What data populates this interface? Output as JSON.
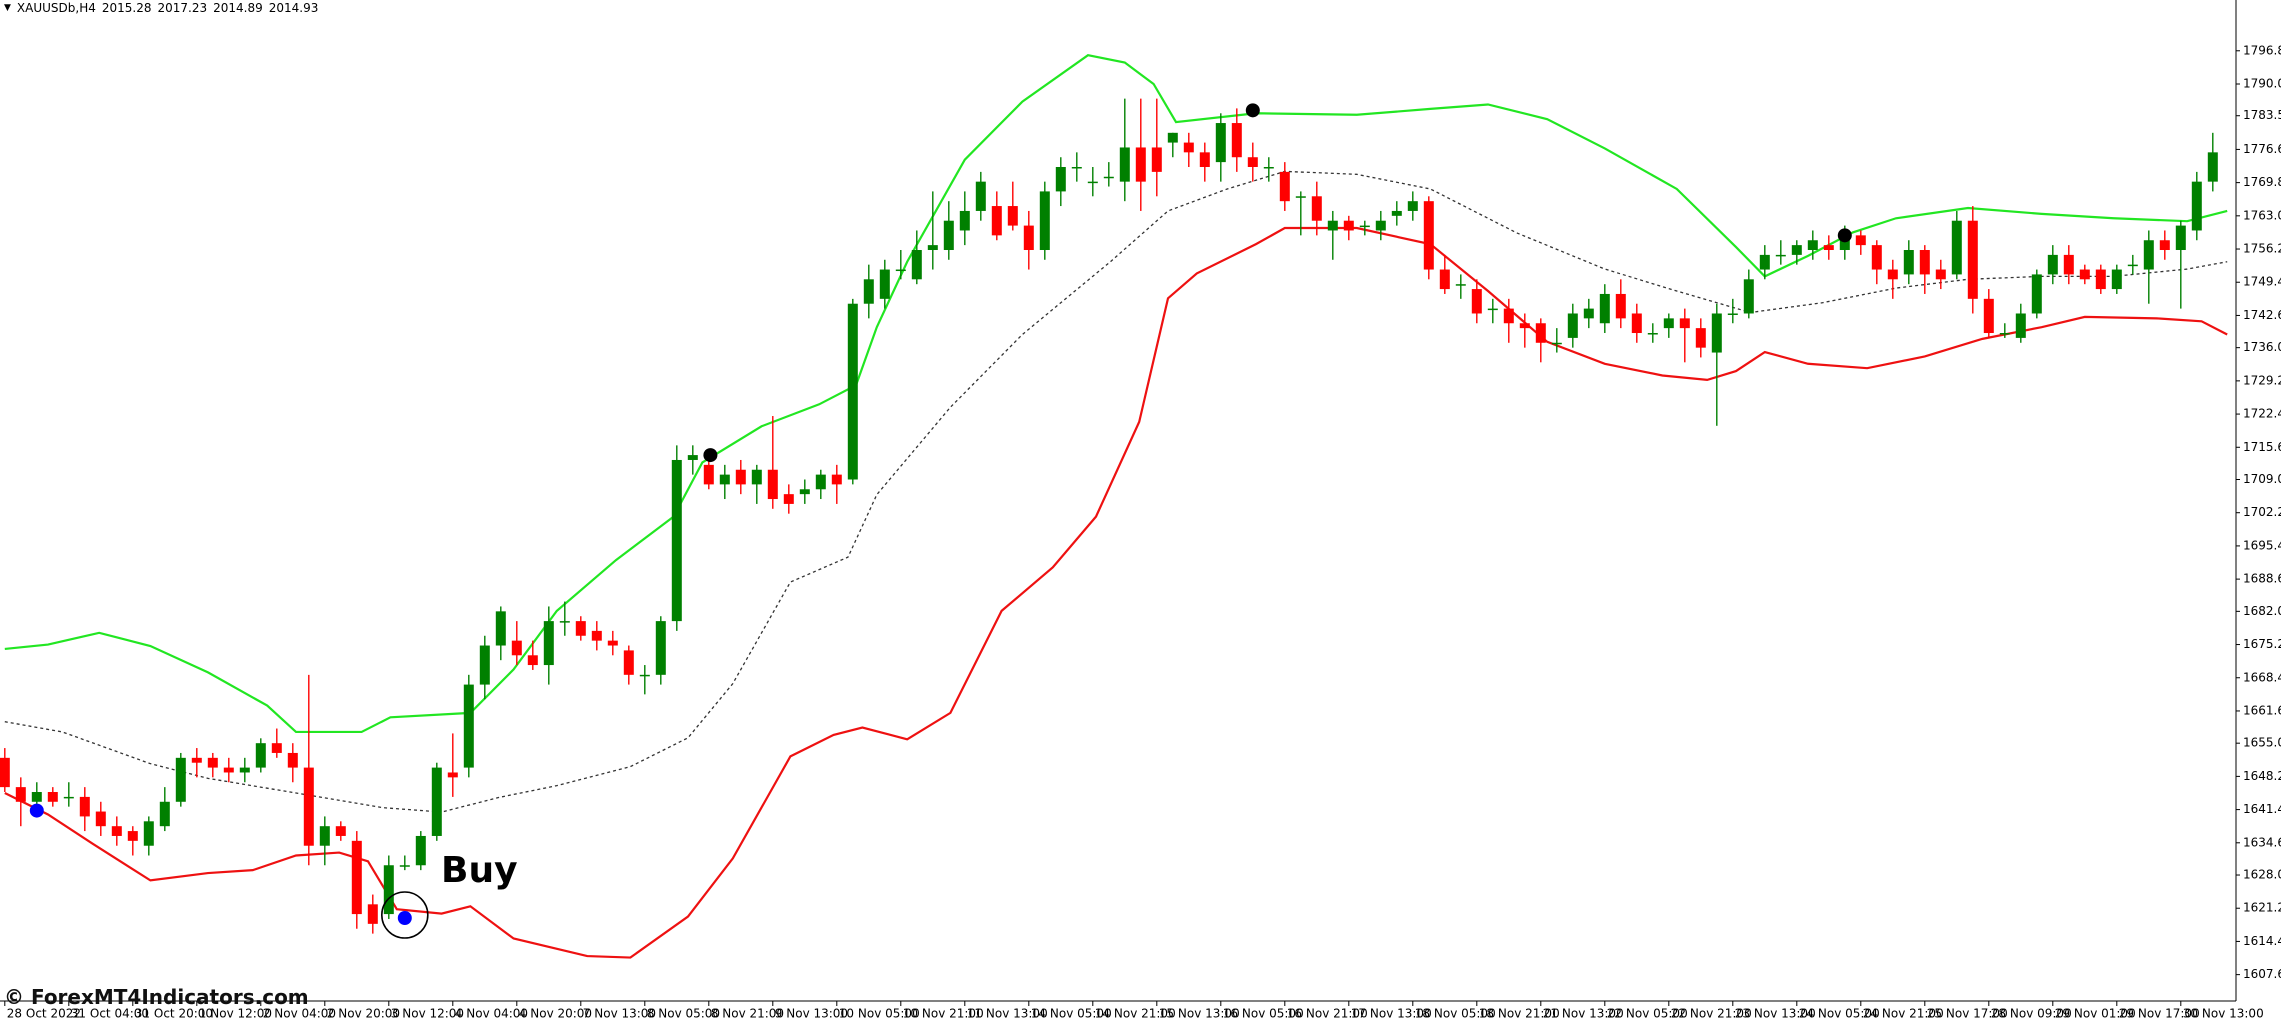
{
  "header": {
    "symbol": "XAUUSDb,H4",
    "quote": [
      2015.28,
      2017.23,
      2014.89,
      2014.93
    ]
  },
  "watermark": "© ForexMT4Indicators.com",
  "chart_data": {
    "type": "candlestick",
    "annotation": "Buy",
    "up_color": "#008000",
    "down_color": "#ff0000",
    "ylim": [
      1602.2,
      1807.2
    ],
    "yticks": [
      {
        "value": 1796.8,
        "label": "1796.80"
      },
      {
        "value": 1790,
        "label": "1790.00"
      },
      {
        "value": 1783.5,
        "label": "1783.50"
      },
      {
        "value": 1776.6,
        "label": "1776.60"
      },
      {
        "value": 1769.8,
        "label": "1769.80"
      },
      {
        "value": 1763,
        "label": "1763.00"
      },
      {
        "value": 1756.2,
        "label": "1756.20"
      },
      {
        "value": 1749.4,
        "label": "1749.40"
      },
      {
        "value": 1742.6,
        "label": "1742.60"
      },
      {
        "value": 1736,
        "label": "1736.00"
      },
      {
        "value": 1729.2,
        "label": "1729.20"
      },
      {
        "value": 1722.4,
        "label": "1722.40"
      },
      {
        "value": 1715.6,
        "label": "1715.60"
      },
      {
        "value": 1709,
        "label": "1709.00"
      },
      {
        "value": 1702.2,
        "label": "1702.20"
      },
      {
        "value": 1695.4,
        "label": "1695.40"
      },
      {
        "value": 1688.6,
        "label": "1688.60"
      },
      {
        "value": 1682,
        "label": "1682.00"
      },
      {
        "value": 1675.2,
        "label": "1675.20"
      },
      {
        "value": 1668.4,
        "label": "1668.40"
      },
      {
        "value": 1661.6,
        "label": "1661.60"
      },
      {
        "value": 1655,
        "label": "1655.00"
      },
      {
        "value": 1648.2,
        "label": "1648.20"
      },
      {
        "value": 1641.4,
        "label": "1641.40"
      },
      {
        "value": 1634.6,
        "label": "1634.60"
      },
      {
        "value": 1628,
        "label": "1628.00"
      },
      {
        "value": 1621.2,
        "label": "1621.20"
      },
      {
        "value": 1614.4,
        "label": "1614.40"
      },
      {
        "value": 1607.6,
        "label": "1607.60"
      }
    ],
    "xlim": [
      -0.3,
      139.45
    ],
    "xticks": [
      {
        "value": 0,
        "label": "28 Oct 2022"
      },
      {
        "value": 4,
        "label": "31 Oct 04:00"
      },
      {
        "value": 8,
        "label": "31 Oct 20:00"
      },
      {
        "value": 12,
        "label": "1 Nov 12:00"
      },
      {
        "value": 16,
        "label": "2 Nov 04:00"
      },
      {
        "value": 20,
        "label": "2 Nov 20:00"
      },
      {
        "value": 24,
        "label": "3 Nov 12:00"
      },
      {
        "value": 28,
        "label": "4 Nov 04:00"
      },
      {
        "value": 32,
        "label": "4 Nov 20:00"
      },
      {
        "value": 36,
        "label": "7 Nov 13:00"
      },
      {
        "value": 40,
        "label": "8 Nov 05:00"
      },
      {
        "value": 44,
        "label": "8 Nov 21:00"
      },
      {
        "value": 48,
        "label": "9 Nov 13:00"
      },
      {
        "value": 52,
        "label": "10 Nov 05:00"
      },
      {
        "value": 56,
        "label": "10 Nov 21:00"
      },
      {
        "value": 60,
        "label": "11 Nov 13:00"
      },
      {
        "value": 64,
        "label": "14 Nov 05:00"
      },
      {
        "value": 68,
        "label": "14 Nov 21:00"
      },
      {
        "value": 72,
        "label": "15 Nov 13:00"
      },
      {
        "value": 76,
        "label": "16 Nov 05:00"
      },
      {
        "value": 80,
        "label": "16 Nov 21:00"
      },
      {
        "value": 84,
        "label": "17 Nov 13:00"
      },
      {
        "value": 88,
        "label": "18 Nov 05:00"
      },
      {
        "value": 92,
        "label": "18 Nov 21:00"
      },
      {
        "value": 96,
        "label": "21 Nov 13:00"
      },
      {
        "value": 100,
        "label": "22 Nov 05:00"
      },
      {
        "value": 104,
        "label": "22 Nov 21:00"
      },
      {
        "value": 108,
        "label": "23 Nov 13:00"
      },
      {
        "value": 112,
        "label": "24 Nov 05:00"
      },
      {
        "value": 116,
        "label": "24 Nov 21:00"
      },
      {
        "value": 120,
        "label": "25 Nov 17:00"
      },
      {
        "value": 124,
        "label": "28 Nov 09:00"
      },
      {
        "value": 128,
        "label": "29 Nov 01:00"
      },
      {
        "value": 132,
        "label": "29 Nov 17:00"
      },
      {
        "value": 136,
        "label": "30 Nov 13:00"
      }
    ],
    "ohlc": [
      [
        1652,
        1654,
        1645,
        1646
      ],
      [
        1646,
        1648,
        1638,
        1643
      ],
      [
        1643,
        1647,
        1641,
        1645
      ],
      [
        1645,
        1646,
        1642,
        1643
      ],
      [
        1644,
        1647,
        1642,
        1644
      ],
      [
        1644,
        1646,
        1637,
        1640
      ],
      [
        1641,
        1643,
        1636,
        1638
      ],
      [
        1638,
        1640,
        1634,
        1636
      ],
      [
        1637,
        1638,
        1632,
        1635
      ],
      [
        1634,
        1640,
        1632,
        1639
      ],
      [
        1638,
        1646,
        1637,
        1643
      ],
      [
        1643,
        1653,
        1642,
        1652
      ],
      [
        1652,
        1654,
        1648,
        1651
      ],
      [
        1652,
        1653,
        1648,
        1650
      ],
      [
        1650,
        1652,
        1647,
        1649
      ],
      [
        1649,
        1652,
        1647,
        1650
      ],
      [
        1650,
        1656,
        1649,
        1655
      ],
      [
        1655,
        1658,
        1652,
        1653
      ],
      [
        1653,
        1655,
        1647,
        1650
      ],
      [
        1650,
        1669,
        1630,
        1634
      ],
      [
        1634,
        1640,
        1630,
        1638
      ],
      [
        1638,
        1639,
        1635,
        1636
      ],
      [
        1635,
        1637,
        1617,
        1620
      ],
      [
        1622,
        1624,
        1616,
        1618
      ],
      [
        1620,
        1632,
        1619,
        1630
      ],
      [
        1630,
        1632,
        1629,
        1630
      ],
      [
        1630,
        1637,
        1629,
        1636
      ],
      [
        1636,
        1651,
        1635,
        1650
      ],
      [
        1649,
        1657,
        1644,
        1648
      ],
      [
        1650,
        1669,
        1648,
        1667
      ],
      [
        1667,
        1677,
        1664,
        1675
      ],
      [
        1675,
        1683,
        1672,
        1682
      ],
      [
        1676,
        1680,
        1671,
        1673
      ],
      [
        1673,
        1676,
        1670,
        1671
      ],
      [
        1671,
        1683,
        1667,
        1680
      ],
      [
        1680,
        1684,
        1677,
        1680
      ],
      [
        1680,
        1681,
        1676,
        1677
      ],
      [
        1678,
        1680,
        1674,
        1676
      ],
      [
        1676,
        1678,
        1673,
        1675
      ],
      [
        1674,
        1675,
        1667,
        1669
      ],
      [
        1669,
        1671,
        1665,
        1669
      ],
      [
        1669,
        1681,
        1667,
        1680
      ],
      [
        1680,
        1716,
        1678,
        1713
      ],
      [
        1713,
        1716,
        1710,
        1714
      ],
      [
        1712,
        1714,
        1707,
        1708
      ],
      [
        1708,
        1712,
        1705,
        1710
      ],
      [
        1711,
        1713,
        1706,
        1708
      ],
      [
        1708,
        1712,
        1704,
        1711
      ],
      [
        1711,
        1722,
        1703,
        1705
      ],
      [
        1706,
        1708,
        1702,
        1704
      ],
      [
        1706,
        1709,
        1704,
        1707
      ],
      [
        1707,
        1711,
        1705,
        1710
      ],
      [
        1710,
        1712,
        1704,
        1708
      ],
      [
        1709,
        1746,
        1708,
        1745
      ],
      [
        1745,
        1753,
        1742,
        1750
      ],
      [
        1746,
        1754,
        1744,
        1752
      ],
      [
        1752,
        1756,
        1750,
        1752
      ],
      [
        1750,
        1760,
        1749,
        1756
      ],
      [
        1756,
        1768,
        1752,
        1757
      ],
      [
        1756,
        1766,
        1754,
        1762
      ],
      [
        1760,
        1768,
        1757,
        1764
      ],
      [
        1764,
        1772,
        1762,
        1770
      ],
      [
        1765,
        1768,
        1758,
        1759
      ],
      [
        1765,
        1770,
        1760,
        1761
      ],
      [
        1761,
        1764,
        1752,
        1756
      ],
      [
        1756,
        1770,
        1754,
        1768
      ],
      [
        1768,
        1775,
        1765,
        1773
      ],
      [
        1773,
        1776,
        1770,
        1773
      ],
      [
        1770,
        1773,
        1767,
        1770
      ],
      [
        1771,
        1774,
        1769,
        1771
      ],
      [
        1770,
        1787,
        1766,
        1777
      ],
      [
        1777,
        1787,
        1764,
        1770
      ],
      [
        1777,
        1787,
        1767,
        1772
      ],
      [
        1778,
        1780,
        1775,
        1780
      ],
      [
        1778,
        1780,
        1773,
        1776
      ],
      [
        1776,
        1778,
        1770,
        1773
      ],
      [
        1774,
        1784,
        1770,
        1782
      ],
      [
        1782,
        1785,
        1772,
        1775
      ],
      [
        1775,
        1778,
        1770,
        1773
      ],
      [
        1773,
        1775,
        1770,
        1773
      ],
      [
        1772,
        1774,
        1764,
        1766
      ],
      [
        1767,
        1768,
        1759,
        1767
      ],
      [
        1767,
        1770,
        1759,
        1762
      ],
      [
        1760,
        1764,
        1754,
        1762
      ],
      [
        1762,
        1763,
        1758,
        1760
      ],
      [
        1761,
        1762,
        1759,
        1761
      ],
      [
        1760,
        1764,
        1758,
        1762
      ],
      [
        1763,
        1766,
        1761,
        1764
      ],
      [
        1764,
        1768,
        1762,
        1766
      ],
      [
        1766,
        1767,
        1750,
        1752
      ],
      [
        1752,
        1755,
        1747,
        1748
      ],
      [
        1749,
        1751,
        1746,
        1749
      ],
      [
        1748,
        1750,
        1741,
        1743
      ],
      [
        1744,
        1746,
        1741,
        1744
      ],
      [
        1744,
        1746,
        1737,
        1741
      ],
      [
        1741,
        1743,
        1736,
        1740
      ],
      [
        1741,
        1742,
        1733,
        1737
      ],
      [
        1737,
        1740,
        1735,
        1737
      ],
      [
        1738,
        1745,
        1736,
        1743
      ],
      [
        1742,
        1746,
        1740,
        1744
      ],
      [
        1741,
        1749,
        1739,
        1747
      ],
      [
        1747,
        1750,
        1740,
        1742
      ],
      [
        1743,
        1745,
        1737,
        1739
      ],
      [
        1739,
        1741,
        1737,
        1739
      ],
      [
        1740,
        1743,
        1738,
        1742
      ],
      [
        1742,
        1744,
        1733,
        1740
      ],
      [
        1740,
        1742,
        1734,
        1736
      ],
      [
        1735,
        1745,
        1720,
        1743
      ],
      [
        1743,
        1746,
        1741,
        1743
      ],
      [
        1743,
        1752,
        1742,
        1750
      ],
      [
        1752,
        1757,
        1750,
        1755
      ],
      [
        1755,
        1758,
        1753,
        1755
      ],
      [
        1755,
        1758,
        1753,
        1757
      ],
      [
        1756,
        1760,
        1754,
        1758
      ],
      [
        1757,
        1759,
        1754,
        1756
      ],
      [
        1756,
        1761,
        1754,
        1759
      ],
      [
        1759,
        1760,
        1755,
        1757
      ],
      [
        1757,
        1758,
        1749,
        1752
      ],
      [
        1752,
        1754,
        1746,
        1750
      ],
      [
        1751,
        1758,
        1749,
        1756
      ],
      [
        1756,
        1757,
        1747,
        1751
      ],
      [
        1752,
        1754,
        1748,
        1750
      ],
      [
        1751,
        1764,
        1750,
        1762
      ],
      [
        1762,
        1765,
        1743,
        1746
      ],
      [
        1746,
        1748,
        1738,
        1739
      ],
      [
        1739,
        1741,
        1738,
        1739
      ],
      [
        1738,
        1745,
        1737,
        1743
      ],
      [
        1743,
        1752,
        1742,
        1751
      ],
      [
        1751,
        1757,
        1749,
        1755
      ],
      [
        1755,
        1757,
        1749,
        1751
      ],
      [
        1752,
        1753,
        1749,
        1750
      ],
      [
        1752,
        1753,
        1747,
        1748
      ],
      [
        1748,
        1753,
        1747,
        1752
      ],
      [
        1753,
        1755,
        1751,
        1753
      ],
      [
        1752,
        1760,
        1745,
        1758
      ],
      [
        1758,
        1760,
        1754,
        1756
      ],
      [
        1756,
        1762,
        1744,
        1761
      ],
      [
        1760,
        1772,
        1758,
        1770
      ],
      [
        1770,
        1780,
        1768,
        1776
      ]
    ],
    "bands": [
      {
        "color": "#22e622",
        "dash": false,
        "x": [
          0,
          2.7,
          5.9,
          9.1,
          12.7,
          16.4,
          18.2,
          22.3,
          24.1,
          29.1,
          31.8,
          34.5,
          38.2,
          41.8,
          43.6,
          47.3,
          50.9,
          53.2,
          54.5,
          56.4,
          60,
          63.6,
          67.7,
          70,
          71.8,
          73.2,
          78.2,
          84.5,
          89.1,
          92.7,
          96.4,
          100,
          104.5,
          108.2,
          110,
          112.7,
          115.5,
          118.2,
          122.7,
          127.3,
          131.8,
          136.4,
          138.9
        ],
        "values": [
          1674.3,
          1675.2,
          1677.6,
          1674.9,
          1669.5,
          1662.7,
          1657.3,
          1657.3,
          1660.3,
          1661.2,
          1670.1,
          1682.1,
          1692.5,
          1701.4,
          1712.5,
          1719.9,
          1724.4,
          1728.3,
          1740.2,
          1753.6,
          1774.5,
          1786.4,
          1795.9,
          1794.4,
          1790,
          1782.2,
          1784,
          1783.7,
          1784.9,
          1785.8,
          1782.8,
          1776.8,
          1768.5,
          1756.6,
          1750.6,
          1754.8,
          1759.6,
          1762.5,
          1764.6,
          1763.4,
          1762.5,
          1761.9,
          1764
        ]
      },
      {
        "color": "#333333",
        "dash": true,
        "x": [
          0,
          3.6,
          9.1,
          12.7,
          18.2,
          23.6,
          27.3,
          30.9,
          34.5,
          39.1,
          42.7,
          45.5,
          49.1,
          52.7,
          54.5,
          59.1,
          63.6,
          69.1,
          72.7,
          76.4,
          80,
          84.5,
          89.1,
          94.5,
          100,
          104.5,
          109.1,
          113.6,
          118.2,
          122.7,
          127.3,
          131.8,
          136.4,
          138.9
        ],
        "values": [
          1659.4,
          1657.3,
          1650.8,
          1647.8,
          1644.8,
          1641.8,
          1640.9,
          1643.9,
          1646.3,
          1650.2,
          1656.1,
          1667.2,
          1688,
          1693.1,
          1705.9,
          1723.8,
          1738.7,
          1753.6,
          1764,
          1768.5,
          1772.1,
          1771.5,
          1768.5,
          1759.5,
          1752.1,
          1747.6,
          1743.2,
          1745.2,
          1748.2,
          1750,
          1750.6,
          1750.6,
          1752.1,
          1753.6
        ]
      },
      {
        "color": "#ee1111",
        "dash": false,
        "x": [
          0,
          2.7,
          5.5,
          9.1,
          12.7,
          15.5,
          18.2,
          20.9,
          22.7,
          24.5,
          27.3,
          29.1,
          31.8,
          36.4,
          39.1,
          42.7,
          45.5,
          49.1,
          51.8,
          53.6,
          56.4,
          59.1,
          62.3,
          65.5,
          68.2,
          70.9,
          72.7,
          74.5,
          78.2,
          80,
          84.5,
          89.1,
          92.7,
          96.4,
          100,
          103.6,
          106.4,
          108.2,
          110,
          112.7,
          116.4,
          120,
          123.6,
          127.3,
          130,
          134.5,
          137.3,
          138.9
        ],
        "values": [
          1644.8,
          1640.4,
          1634.4,
          1626.9,
          1628.4,
          1629,
          1632,
          1632.6,
          1630.8,
          1621,
          1620.1,
          1621.6,
          1615,
          1611.4,
          1611.1,
          1619.5,
          1631.4,
          1652.3,
          1656.7,
          1658.2,
          1655.8,
          1661.2,
          1682.1,
          1691,
          1701.4,
          1720.8,
          1746.1,
          1751.2,
          1757.2,
          1760.5,
          1760.5,
          1757.2,
          1747.6,
          1737.2,
          1732.7,
          1730.3,
          1729.4,
          1731.2,
          1735.1,
          1732.7,
          1731.8,
          1734.2,
          1737.8,
          1740.2,
          1742.3,
          1742,
          1741.4,
          1738.7
        ]
      }
    ],
    "markers": [
      {
        "color": "#0000ff",
        "x": [
          2,
          25
        ],
        "values": [
          1641.2,
          1619.2
        ]
      },
      {
        "color": "#000000",
        "x": [
          44.1,
          78,
          115
        ],
        "values": [
          1714,
          1784.6,
          1759
        ]
      }
    ]
  }
}
